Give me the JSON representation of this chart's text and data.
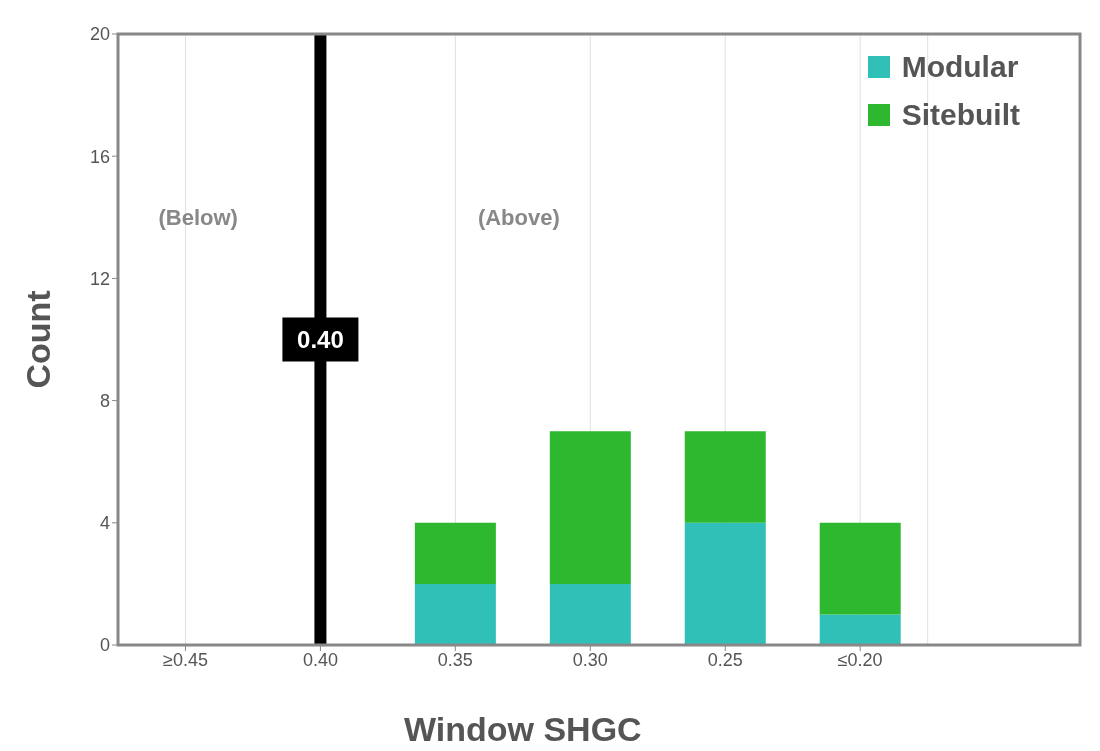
{
  "chart_data": {
    "type": "bar",
    "stacked": true,
    "xlabel": "Window SHGC",
    "ylabel": "Count",
    "categories": [
      "≥0.45",
      "0.40",
      "0.35",
      "0.30",
      "0.25",
      "≤0.20"
    ],
    "series": [
      {
        "name": "Modular",
        "color": "#30c0b8",
        "values": [
          0,
          0,
          2,
          2,
          4,
          1
        ]
      },
      {
        "name": "Sitebuilt",
        "color": "#2db830",
        "values": [
          0,
          0,
          2,
          5,
          3,
          3
        ]
      }
    ],
    "ylim": [
      0,
      20
    ],
    "yticks": [
      0,
      4,
      8,
      12,
      16,
      20
    ],
    "grid": "x",
    "legend": "top right",
    "ref_lines": [
      {
        "axis": "x",
        "value": "0.40",
        "label": "0.40",
        "color": "#000000"
      }
    ],
    "annotations": [
      "(Below)",
      "(Above)"
    ]
  }
}
